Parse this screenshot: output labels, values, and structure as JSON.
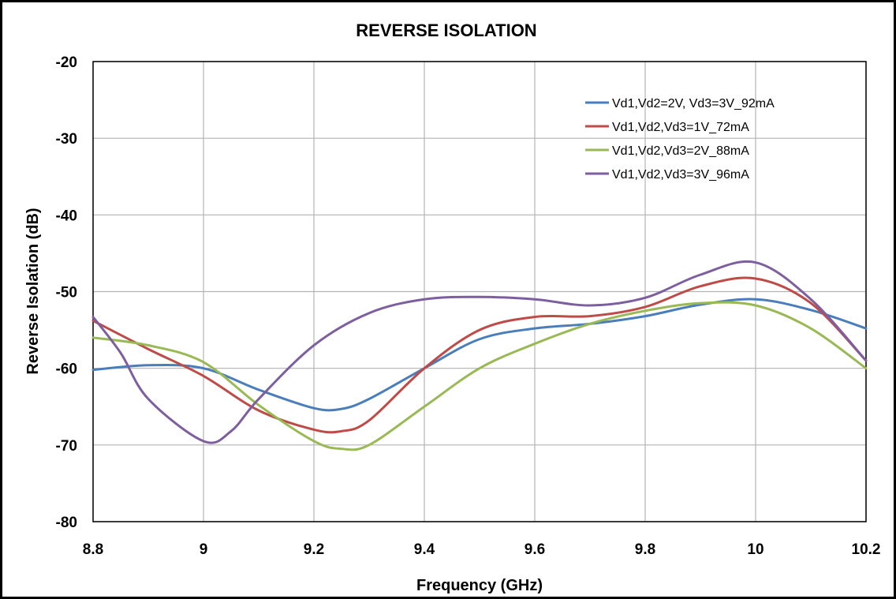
{
  "chart_data": {
    "type": "line",
    "title": "REVERSE ISOLATION",
    "xlabel": "Frequency (GHz)",
    "ylabel": "Reverse Isolation (dB)",
    "xlim": [
      8.8,
      10.2
    ],
    "ylim": [
      -80,
      -20
    ],
    "xticks": [
      8.8,
      9,
      9.2,
      9.4,
      9.6,
      9.8,
      10,
      10.2
    ],
    "yticks": [
      -80,
      -70,
      -60,
      -50,
      -40,
      -30,
      -20
    ],
    "xtick_labels": [
      "8.8",
      "9",
      "9.2",
      "9.4",
      "9.6",
      "9.8",
      "10",
      "10.2"
    ],
    "ytick_labels": [
      "-80",
      "-70",
      "-60",
      "-50",
      "-40",
      "-30",
      "-20"
    ],
    "grid": true,
    "legend_position": "top-right",
    "series": [
      {
        "name": "Vd1,Vd2=2V, Vd3=3V_92mA",
        "color": "#4a7ebb",
        "x": [
          8.8,
          8.9,
          9.0,
          9.1,
          9.2,
          9.25,
          9.3,
          9.4,
          9.5,
          9.6,
          9.7,
          9.8,
          9.9,
          10.0,
          10.1,
          10.2
        ],
        "y": [
          -60.2,
          -59.6,
          -60.0,
          -62.8,
          -65.2,
          -65.3,
          -64.0,
          -60.0,
          -56.2,
          -54.8,
          -54.2,
          -53.2,
          -51.7,
          -51.0,
          -52.4,
          -54.8
        ]
      },
      {
        "name": "Vd1,Vd2,Vd3=1V_72mA",
        "color": "#be4b48",
        "x": [
          8.8,
          8.9,
          9.0,
          9.1,
          9.2,
          9.25,
          9.3,
          9.4,
          9.5,
          9.6,
          9.7,
          9.8,
          9.9,
          10.0,
          10.1,
          10.2
        ],
        "y": [
          -53.8,
          -57.5,
          -61.0,
          -65.5,
          -68.0,
          -68.2,
          -66.8,
          -60.0,
          -55.0,
          -53.3,
          -53.2,
          -52.0,
          -49.3,
          -48.3,
          -51.5,
          -59.0
        ]
      },
      {
        "name": "Vd1,Vd2,Vd3=2V_88mA",
        "color": "#98b954",
        "x": [
          8.8,
          8.9,
          9.0,
          9.1,
          9.2,
          9.25,
          9.3,
          9.4,
          9.5,
          9.6,
          9.7,
          9.8,
          9.9,
          10.0,
          10.1,
          10.2
        ],
        "y": [
          -56.0,
          -57.0,
          -59.2,
          -64.8,
          -69.5,
          -70.5,
          -70.0,
          -65.0,
          -60.0,
          -56.8,
          -54.2,
          -52.5,
          -51.5,
          -51.8,
          -54.8,
          -60.0
        ]
      },
      {
        "name": "Vd1,Vd2,Vd3=3V_96mA",
        "color": "#7d5fa0",
        "x": [
          8.8,
          8.85,
          8.9,
          9.0,
          9.05,
          9.1,
          9.2,
          9.3,
          9.4,
          9.5,
          9.6,
          9.7,
          9.8,
          9.9,
          10.0,
          10.1,
          10.2
        ],
        "y": [
          -53.3,
          -58.0,
          -64.0,
          -69.5,
          -68.2,
          -64.0,
          -57.0,
          -52.8,
          -51.0,
          -50.7,
          -51.0,
          -51.8,
          -50.8,
          -47.8,
          -46.2,
          -51.0,
          -59.0
        ]
      }
    ]
  }
}
